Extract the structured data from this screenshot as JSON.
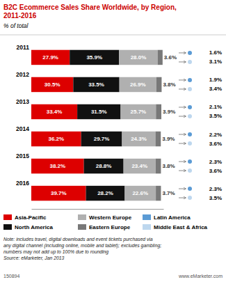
{
  "chart_data": {
    "type": "bar",
    "orientation": "horizontal",
    "stacked": true,
    "title": "B2C Ecommerce Sales Share Worldwide, by Region,\n2011-2016",
    "subtitle": "% of total",
    "categories": [
      "2011",
      "2012",
      "2013",
      "2014",
      "2015",
      "2016"
    ],
    "series": [
      {
        "name": "Asia-Pacific",
        "color": "#dd0000",
        "values": [
          27.9,
          30.5,
          33.4,
          36.2,
          38.2,
          39.7
        ],
        "value_labels": [
          "27.9%",
          "30.5%",
          "33.4%",
          "36.2%",
          "38.2%",
          "39.7%"
        ]
      },
      {
        "name": "North America",
        "color": "#111111",
        "values": [
          35.9,
          33.5,
          31.5,
          29.7,
          28.8,
          28.2
        ],
        "value_labels": [
          "35.9%",
          "33.5%",
          "31.5%",
          "29.7%",
          "28.8%",
          "28.2%"
        ]
      },
      {
        "name": "Western Europe",
        "color": "#b0b0b0",
        "values": [
          28.0,
          26.9,
          25.7,
          24.3,
          23.4,
          22.6
        ],
        "value_labels": [
          "28.0%",
          "26.9%",
          "25.7%",
          "24.3%",
          "23.4%",
          "22.6%"
        ]
      },
      {
        "name": "Eastern Europe",
        "color": "#787878",
        "values": [
          3.6,
          3.8,
          3.9,
          3.9,
          3.8,
          3.7
        ],
        "value_labels": [
          "3.6%",
          "3.8%",
          "3.9%",
          "3.9%",
          "3.8%",
          "3.7%"
        ]
      },
      {
        "name": "Latin America",
        "type": "label",
        "color": "#5b9bd5",
        "values": [
          1.6,
          1.9,
          2.1,
          2.2,
          2.3,
          2.3
        ],
        "value_labels": [
          "1.6%",
          "1.9%",
          "2.1%",
          "2.2%",
          "2.3%",
          "2.3%"
        ]
      },
      {
        "name": "Middle East & Africa",
        "type": "label",
        "color": "#bdd7ee",
        "values": [
          3.1,
          3.4,
          3.5,
          3.6,
          3.6,
          3.5
        ],
        "value_labels": [
          "3.1%",
          "3.4%",
          "3.5%",
          "3.6%",
          "3.6%",
          "3.5%"
        ]
      }
    ],
    "xlim": [
      0,
      96
    ],
    "tick_labels": false,
    "data_labels": true,
    "legend": "bottom",
    "annotations": [
      "Note: includes travel, digital downloads and event tickets purchased via\nany digital channel (including online, mobile and tablet); excludes gambling;\nnumbers may not add up to 100% due to rounding\nSource: eMarketer, Jan 2013",
      "150894",
      "www.eMarketer.com"
    ]
  }
}
